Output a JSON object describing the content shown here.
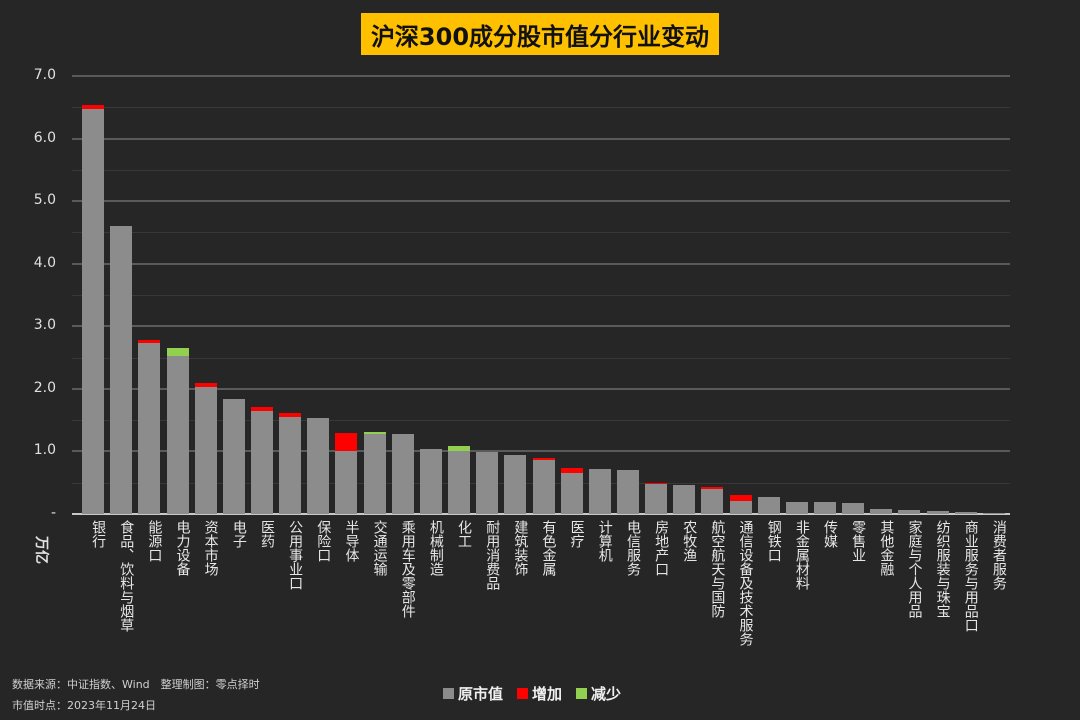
{
  "title": "沪深300成分股市值分行业变动",
  "footer": {
    "source": "数据来源：中证指数、Wind　整理制图：零点择时",
    "date": "市值时点：2023年11月24日"
  },
  "legend": [
    {
      "label": "原市值",
      "color": "#8c8c8c"
    },
    {
      "label": "增加",
      "color": "#ff0000"
    },
    {
      "label": "减少",
      "color": "#92d050"
    }
  ],
  "y_axis": {
    "unit": "万亿",
    "ticks": [
      "-",
      "1.0",
      "2.0",
      "3.0",
      "4.0",
      "5.0",
      "6.0",
      "7.0"
    ]
  },
  "chart_data": {
    "type": "bar",
    "stacked": true,
    "title": "沪深300成分股市值分行业变动",
    "xlabel": "",
    "ylabel": "万亿",
    "ylim": [
      0,
      7.0
    ],
    "grid": true,
    "legend_position": "bottom",
    "categories": [
      "银行",
      "食品、饮料与烟草",
      "能源口",
      "电力设备",
      "资本市场",
      "电子",
      "医药",
      "公用事业口",
      "保险口",
      "半导体",
      "交通运输",
      "乘用车及零部件",
      "机械制造",
      "化工",
      "耐用消费品",
      "建筑装饰",
      "有色金属",
      "医疗",
      "计算机",
      "电信服务",
      "房地产口",
      "农牧渔",
      "航空航天与国防",
      "通信设备及技术服务",
      "钢铁口",
      "非金属材料",
      "传媒",
      "零售业",
      "其他金融",
      "家庭与个人用品",
      "纺织服装与珠宝",
      "商业服务与用品口",
      "消费者服务"
    ],
    "series": [
      {
        "name": "原市值",
        "values": [
          6.47,
          4.6,
          2.73,
          2.52,
          2.03,
          1.84,
          1.65,
          1.55,
          1.53,
          1.01,
          1.28,
          1.28,
          1.04,
          1.01,
          0.99,
          0.94,
          0.86,
          0.65,
          0.72,
          0.7,
          0.48,
          0.47,
          0.4,
          0.21,
          0.27,
          0.19,
          0.19,
          0.17,
          0.08,
          0.07,
          0.05,
          0.03,
          0.02
        ]
      },
      {
        "name": "增加",
        "values": [
          0.06,
          0,
          0.05,
          0,
          0.07,
          0,
          0.06,
          0.06,
          0,
          0.28,
          0,
          0,
          0,
          0,
          0,
          0,
          0.03,
          0.09,
          0,
          0,
          0.02,
          0,
          0.03,
          0.09,
          0,
          0,
          0,
          0,
          0,
          0,
          0,
          0,
          0
        ]
      },
      {
        "name": "减少",
        "values": [
          0,
          0,
          0,
          0.13,
          0,
          0,
          0,
          0,
          0,
          0,
          0.03,
          0,
          0,
          0.07,
          0,
          0,
          0,
          0,
          0,
          0,
          0,
          0,
          0,
          0,
          0,
          0,
          0,
          0,
          0,
          0,
          0,
          0,
          0
        ]
      }
    ]
  }
}
